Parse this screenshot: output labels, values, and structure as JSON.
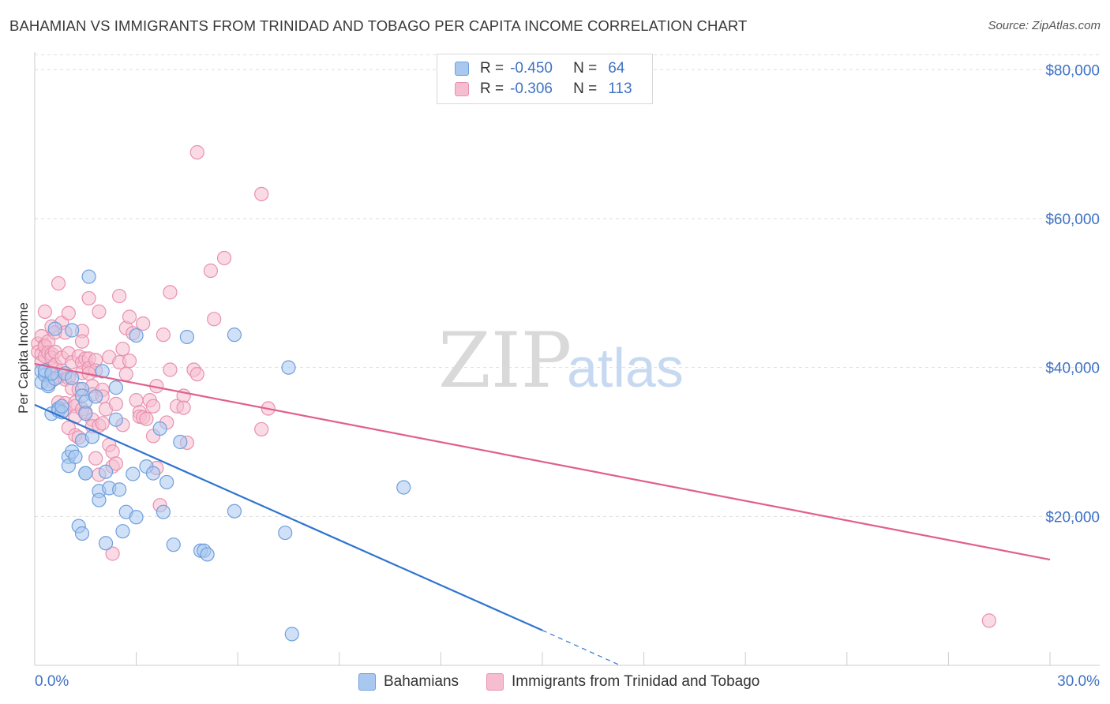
{
  "header": {
    "title": "BAHAMIAN VS IMMIGRANTS FROM TRINIDAD AND TOBAGO PER CAPITA INCOME CORRELATION CHART",
    "source": "Source: ZipAtlas.com"
  },
  "watermark": {
    "zip": "ZIP",
    "atlas": "atlas"
  },
  "stats_box": {
    "rows": [
      {
        "r_label": "R =",
        "r_value": "-0.450",
        "n_label": "N =",
        "n_value": "64",
        "color": "#a9c8f0",
        "border": "#6f9fdc"
      },
      {
        "r_label": "R =",
        "r_value": "-0.306",
        "n_label": "N =",
        "n_value": "113",
        "color": "#f6bdd0",
        "border": "#e890ad"
      }
    ]
  },
  "legend": {
    "items": [
      {
        "label": "Bahamians",
        "color": "#a9c8f0",
        "border": "#6f9fdc"
      },
      {
        "label": "Immigrants from Trinidad and Tobago",
        "color": "#f6bdd0",
        "border": "#e890ad"
      }
    ]
  },
  "chart_data": {
    "type": "scatter",
    "title": "BAHAMIAN VS IMMIGRANTS FROM TRINIDAD AND TOBAGO PER CAPITA INCOME CORRELATION CHART",
    "xlabel": "",
    "ylabel": "Per Capita Income",
    "xlim": [
      0,
      30
    ],
    "ylim": [
      0,
      83000
    ],
    "x_tick_labels": [
      "0.0%",
      "30.0%"
    ],
    "y_ticks": [
      20000,
      40000,
      60000,
      80000
    ],
    "y_tick_labels": [
      "$20,000",
      "$40,000",
      "$60,000",
      "$80,000"
    ],
    "grid": true,
    "legend_position": "bottom-center",
    "series": [
      {
        "name": "Bahamians",
        "color": "#6f9fdc",
        "fill": "#a9c8f0",
        "line_color": "#2f74d0",
        "trend": {
          "x0": 0,
          "y0": 35000,
          "x1": 15,
          "y1": 4700,
          "dash_to_x": 17.3,
          "dash_to_y": 0
        },
        "points": [
          [
            0.2,
            39500
          ],
          [
            0.2,
            38000
          ],
          [
            0.3,
            39000
          ],
          [
            0.4,
            37500
          ],
          [
            0.4,
            37800
          ],
          [
            0.5,
            33800
          ],
          [
            0.6,
            45200
          ],
          [
            0.6,
            38500
          ],
          [
            0.7,
            34500
          ],
          [
            0.7,
            34200
          ],
          [
            0.8,
            34000
          ],
          [
            0.8,
            34800
          ],
          [
            0.9,
            39200
          ],
          [
            1.0,
            28000
          ],
          [
            1.0,
            26800
          ],
          [
            1.1,
            28700
          ],
          [
            1.2,
            28000
          ],
          [
            1.1,
            38600
          ],
          [
            1.1,
            45000
          ],
          [
            1.3,
            18700
          ],
          [
            1.4,
            37100
          ],
          [
            1.4,
            30200
          ],
          [
            1.4,
            36200
          ],
          [
            1.4,
            17700
          ],
          [
            1.5,
            35400
          ],
          [
            1.5,
            33800
          ],
          [
            1.5,
            25800
          ],
          [
            1.5,
            25800
          ],
          [
            1.6,
            52200
          ],
          [
            1.7,
            30700
          ],
          [
            1.8,
            36100
          ],
          [
            1.9,
            23400
          ],
          [
            1.9,
            22200
          ],
          [
            2.0,
            39500
          ],
          [
            2.1,
            16400
          ],
          [
            2.1,
            26000
          ],
          [
            2.2,
            23800
          ],
          [
            2.4,
            33000
          ],
          [
            2.4,
            37300
          ],
          [
            2.5,
            23600
          ],
          [
            2.6,
            18000
          ],
          [
            2.7,
            20600
          ],
          [
            2.9,
            25700
          ],
          [
            3.0,
            19900
          ],
          [
            3.0,
            44300
          ],
          [
            3.3,
            26700
          ],
          [
            3.5,
            25800
          ],
          [
            3.7,
            31800
          ],
          [
            3.8,
            20600
          ],
          [
            3.9,
            24600
          ],
          [
            4.1,
            16200
          ],
          [
            4.3,
            30000
          ],
          [
            4.5,
            44100
          ],
          [
            4.9,
            15400
          ],
          [
            5.0,
            15400
          ],
          [
            5.1,
            14900
          ],
          [
            5.9,
            44400
          ],
          [
            5.9,
            20700
          ],
          [
            7.4,
            17800
          ],
          [
            7.5,
            40000
          ],
          [
            7.6,
            4200
          ],
          [
            10.9,
            23900
          ],
          [
            0.3,
            39600
          ],
          [
            0.5,
            39200
          ]
        ]
      },
      {
        "name": "Immigrants from Trinidad and Tobago",
        "color": "#e890ad",
        "fill": "#f6bdd0",
        "line_color": "#e0608b",
        "trend": {
          "x0": 0,
          "y0": 40500,
          "x1": 30,
          "y1": 14200
        },
        "points": [
          [
            0.1,
            43200
          ],
          [
            0.1,
            42100
          ],
          [
            0.2,
            41800
          ],
          [
            0.2,
            44200
          ],
          [
            0.2,
            40700
          ],
          [
            0.3,
            43000
          ],
          [
            0.3,
            42800
          ],
          [
            0.3,
            47500
          ],
          [
            0.3,
            41500
          ],
          [
            0.4,
            43500
          ],
          [
            0.4,
            42000
          ],
          [
            0.5,
            45500
          ],
          [
            0.5,
            41800
          ],
          [
            0.5,
            41300
          ],
          [
            0.5,
            39900
          ],
          [
            0.5,
            38200
          ],
          [
            0.6,
            40300
          ],
          [
            0.6,
            44700
          ],
          [
            0.6,
            42100
          ],
          [
            0.7,
            51300
          ],
          [
            0.7,
            35300
          ],
          [
            0.7,
            38700
          ],
          [
            0.8,
            46000
          ],
          [
            0.8,
            39600
          ],
          [
            0.8,
            41300
          ],
          [
            0.9,
            35200
          ],
          [
            0.9,
            38400
          ],
          [
            0.9,
            34300
          ],
          [
            1.0,
            41900
          ],
          [
            1.0,
            47300
          ],
          [
            1.0,
            38600
          ],
          [
            1.0,
            31900
          ],
          [
            1.1,
            40700
          ],
          [
            1.1,
            37200
          ],
          [
            1.2,
            35300
          ],
          [
            1.2,
            34800
          ],
          [
            1.2,
            33400
          ],
          [
            1.2,
            30900
          ],
          [
            1.3,
            30600
          ],
          [
            1.3,
            41500
          ],
          [
            1.3,
            37100
          ],
          [
            1.4,
            44900
          ],
          [
            1.4,
            43500
          ],
          [
            1.4,
            40700
          ],
          [
            1.4,
            39300
          ],
          [
            1.4,
            34400
          ],
          [
            1.5,
            41200
          ],
          [
            1.5,
            34000
          ],
          [
            1.6,
            49300
          ],
          [
            1.6,
            41200
          ],
          [
            1.6,
            39900
          ],
          [
            1.7,
            37500
          ],
          [
            1.7,
            36400
          ],
          [
            1.7,
            33000
          ],
          [
            1.7,
            32100
          ],
          [
            1.8,
            41000
          ],
          [
            1.8,
            39600
          ],
          [
            1.8,
            27800
          ],
          [
            1.9,
            47500
          ],
          [
            1.9,
            25600
          ],
          [
            1.9,
            32200
          ],
          [
            2.0,
            37000
          ],
          [
            2.0,
            36100
          ],
          [
            2.0,
            32500
          ],
          [
            2.1,
            34400
          ],
          [
            2.2,
            41400
          ],
          [
            2.2,
            29600
          ],
          [
            2.3,
            28700
          ],
          [
            2.3,
            26700
          ],
          [
            2.4,
            35100
          ],
          [
            2.4,
            27100
          ],
          [
            2.5,
            49600
          ],
          [
            2.5,
            40700
          ],
          [
            2.6,
            42500
          ],
          [
            2.6,
            32300
          ],
          [
            2.7,
            45300
          ],
          [
            2.7,
            39100
          ],
          [
            2.8,
            46800
          ],
          [
            2.8,
            40900
          ],
          [
            2.9,
            44600
          ],
          [
            3.0,
            35600
          ],
          [
            3.1,
            34000
          ],
          [
            3.1,
            33400
          ],
          [
            3.2,
            45900
          ],
          [
            3.2,
            33300
          ],
          [
            3.3,
            33100
          ],
          [
            3.4,
            35600
          ],
          [
            3.5,
            30800
          ],
          [
            3.5,
            34800
          ],
          [
            3.6,
            37500
          ],
          [
            3.6,
            26500
          ],
          [
            3.7,
            21500
          ],
          [
            3.8,
            44400
          ],
          [
            3.9,
            32600
          ],
          [
            4.0,
            39700
          ],
          [
            4.0,
            50100
          ],
          [
            4.2,
            34800
          ],
          [
            4.4,
            36200
          ],
          [
            4.4,
            34600
          ],
          [
            4.5,
            29900
          ],
          [
            4.7,
            39700
          ],
          [
            4.8,
            39100
          ],
          [
            4.8,
            68900
          ],
          [
            5.2,
            53000
          ],
          [
            5.3,
            46500
          ],
          [
            5.6,
            54700
          ],
          [
            6.7,
            63300
          ],
          [
            6.7,
            31700
          ],
          [
            6.9,
            34500
          ],
          [
            28.2,
            6000
          ],
          [
            2.3,
            15000
          ],
          [
            0.9,
            44700
          ],
          [
            1.6,
            39200
          ]
        ]
      }
    ]
  }
}
